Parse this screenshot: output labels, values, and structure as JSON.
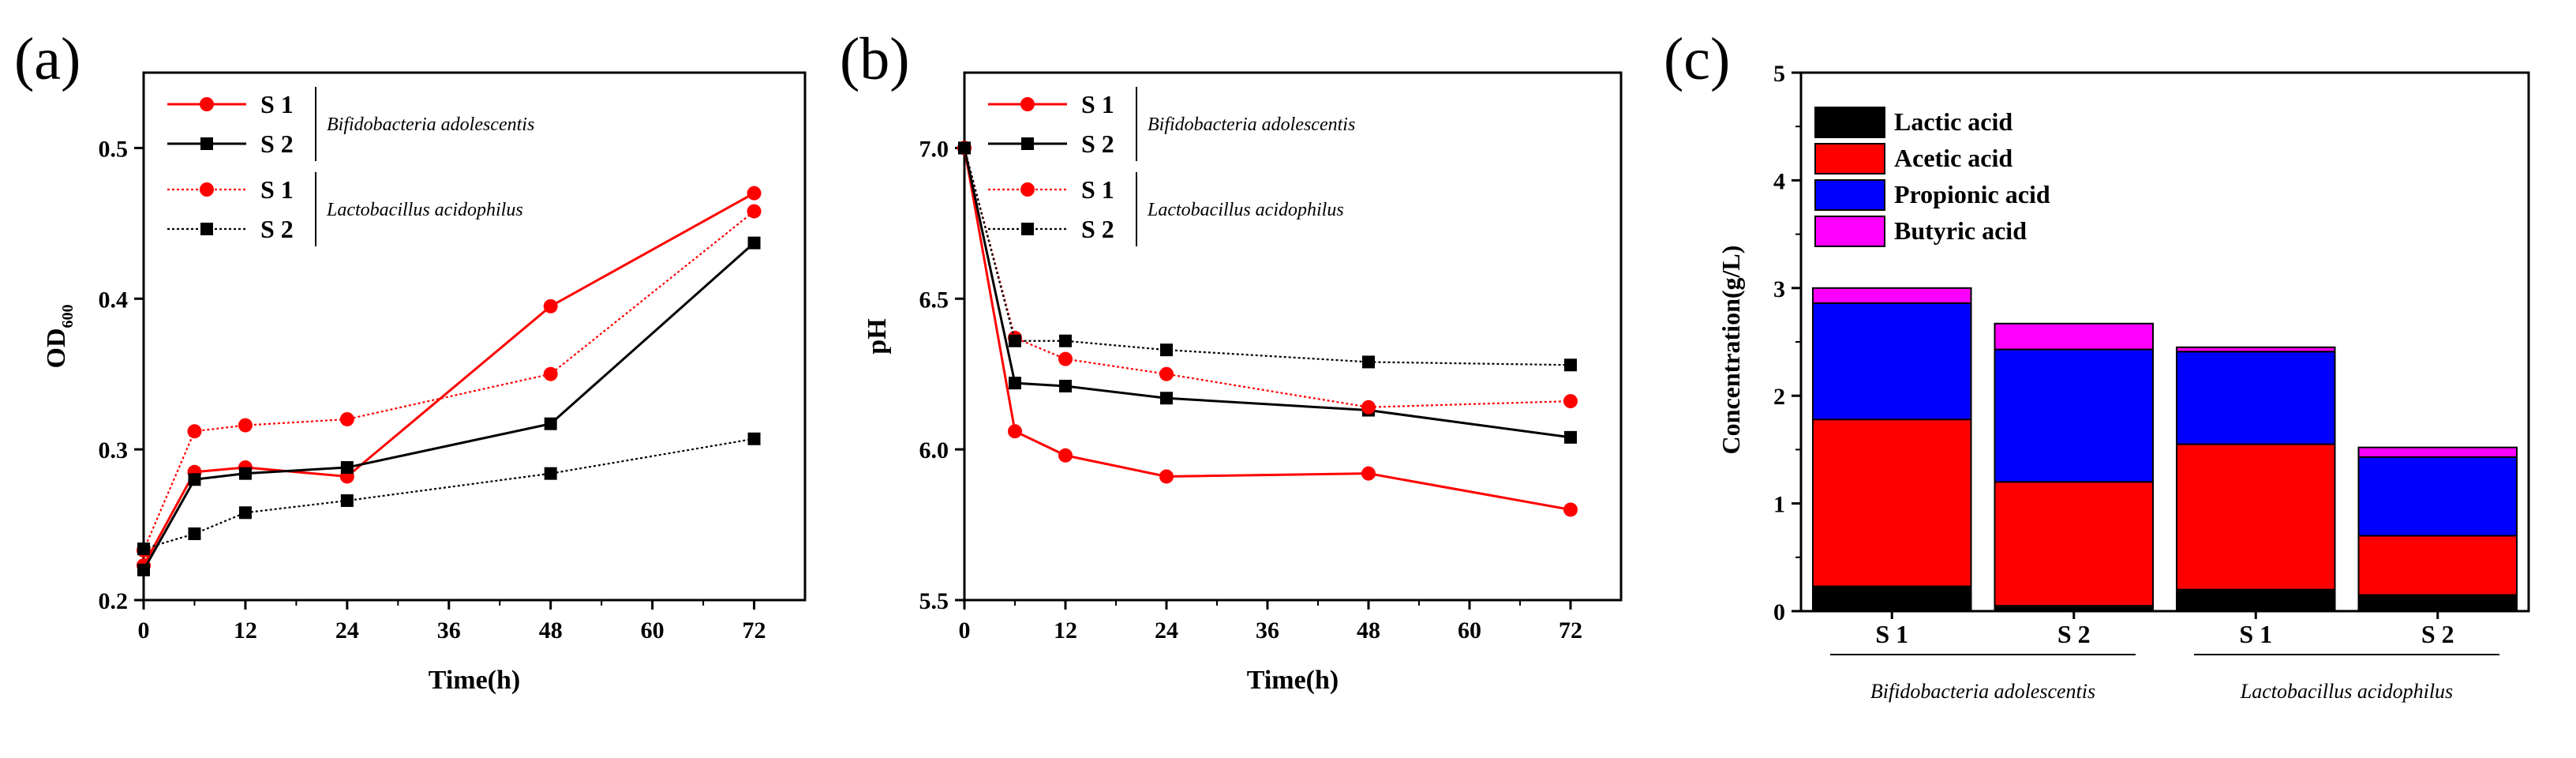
{
  "chart_data": [
    {
      "panel": "(a)",
      "type": "line",
      "title": "",
      "xlabel": "Time(h)",
      "ylabel": "OD",
      "ylabel_sub": "600",
      "xlim": [
        0,
        78
      ],
      "ylim": [
        0.2,
        0.55
      ],
      "xticks": [
        0,
        12,
        24,
        36,
        48,
        60,
        72
      ],
      "yticks": [
        0.2,
        0.3,
        0.4,
        0.5
      ],
      "ytick_labels": [
        "0.2",
        "0.3",
        "0.4",
        "0.5"
      ],
      "legend_groups": [
        {
          "name": "Bifidobacteria adolescentis",
          "entries": [
            "S 1",
            "S 2"
          ]
        },
        {
          "name": "Lactobacillus acidophilus",
          "entries": [
            "S 1",
            "S 2"
          ]
        }
      ],
      "series": [
        {
          "name": "S 1",
          "group": "Bifidobacteria adolescentis",
          "color": "#ff0000",
          "marker": "circle",
          "dashed": false,
          "x": [
            0,
            6,
            12,
            24,
            48,
            72
          ],
          "values": [
            0.223,
            0.285,
            0.288,
            0.282,
            0.395,
            0.47
          ]
        },
        {
          "name": "S 2",
          "group": "Bifidobacteria adolescentis",
          "color": "#000000",
          "marker": "square",
          "dashed": false,
          "x": [
            0,
            6,
            12,
            24,
            48,
            72
          ],
          "values": [
            0.22,
            0.28,
            0.284,
            0.288,
            0.317,
            0.437
          ]
        },
        {
          "name": "S 1",
          "group": "Lactobacillus acidophilus",
          "color": "#ff0000",
          "marker": "circle",
          "dashed": true,
          "x": [
            0,
            6,
            12,
            24,
            48,
            72
          ],
          "values": [
            0.233,
            0.312,
            0.316,
            0.32,
            0.35,
            0.458
          ]
        },
        {
          "name": "S 2",
          "group": "Lactobacillus acidophilus",
          "color": "#000000",
          "marker": "square",
          "dashed": true,
          "x": [
            0,
            6,
            12,
            24,
            48,
            72
          ],
          "values": [
            0.234,
            0.244,
            0.258,
            0.266,
            0.284,
            0.307
          ]
        }
      ]
    },
    {
      "panel": "(b)",
      "type": "line",
      "title": "",
      "xlabel": "Time(h)",
      "ylabel": "pH",
      "xlim": [
        0,
        78
      ],
      "ylim": [
        5.5,
        7.25
      ],
      "xticks": [
        0,
        12,
        24,
        36,
        48,
        60,
        72
      ],
      "yticks": [
        5.5,
        6.0,
        6.5,
        7.0
      ],
      "ytick_labels": [
        "5.5",
        "6.0",
        "6.5",
        "7.0"
      ],
      "legend_groups": [
        {
          "name": "Bifidobacteria adolescentis",
          "entries": [
            "S 1",
            "S 2"
          ]
        },
        {
          "name": "Lactobacillus acidophilus",
          "entries": [
            "S 1",
            "S 2"
          ]
        }
      ],
      "series": [
        {
          "name": "S 1",
          "group": "Bifidobacteria adolescentis",
          "color": "#ff0000",
          "marker": "circle",
          "dashed": false,
          "x": [
            0,
            6,
            12,
            24,
            48,
            72
          ],
          "values": [
            7.0,
            6.06,
            5.98,
            5.91,
            5.92,
            5.8
          ]
        },
        {
          "name": "S 2",
          "group": "Bifidobacteria adolescentis",
          "color": "#000000",
          "marker": "square",
          "dashed": false,
          "x": [
            0,
            6,
            12,
            24,
            48,
            72
          ],
          "values": [
            7.0,
            6.22,
            6.21,
            6.17,
            6.13,
            6.04
          ]
        },
        {
          "name": "S 1",
          "group": "Lactobacillus acidophilus",
          "color": "#ff0000",
          "marker": "circle",
          "dashed": true,
          "x": [
            0,
            6,
            12,
            24,
            48,
            72
          ],
          "values": [
            7.0,
            6.37,
            6.3,
            6.25,
            6.14,
            6.16
          ]
        },
        {
          "name": "S 2",
          "group": "Lactobacillus acidophilus",
          "color": "#000000",
          "marker": "square",
          "dashed": true,
          "x": [
            0,
            6,
            12,
            24,
            48,
            72
          ],
          "values": [
            7.0,
            6.36,
            6.36,
            6.33,
            6.29,
            6.28
          ]
        }
      ]
    },
    {
      "panel": "(c)",
      "type": "bar",
      "stacked": true,
      "title": "",
      "xlabel": "",
      "ylabel": "Concentration(g/L)",
      "ylim": [
        0,
        5
      ],
      "yticks": [
        0,
        1,
        2,
        3,
        4,
        5
      ],
      "ytick_labels": [
        "0",
        "1",
        "2",
        "3",
        "4",
        "5"
      ],
      "categories": [
        "S 1",
        "S 2",
        "S 1",
        "S 2"
      ],
      "category_groups": [
        {
          "name": "Bifidobacteria adolescentis",
          "categories": [
            0,
            1
          ]
        },
        {
          "name": "Lactobacillus acidophilus",
          "categories": [
            2,
            3
          ]
        }
      ],
      "series": [
        {
          "name": "Lactic acid",
          "color": "#000000",
          "values": [
            0.23,
            0.05,
            0.2,
            0.15
          ]
        },
        {
          "name": "Acetic acid",
          "color": "#ff0000",
          "values": [
            1.55,
            1.15,
            1.35,
            0.55
          ]
        },
        {
          "name": "Propionic acid",
          "color": "#0000ff",
          "values": [
            1.08,
            1.23,
            0.86,
            0.73
          ]
        },
        {
          "name": "Butyric acid",
          "color": "#ff00ff",
          "values": [
            0.14,
            0.24,
            0.04,
            0.09
          ]
        }
      ],
      "legend_position": "top-left"
    }
  ]
}
